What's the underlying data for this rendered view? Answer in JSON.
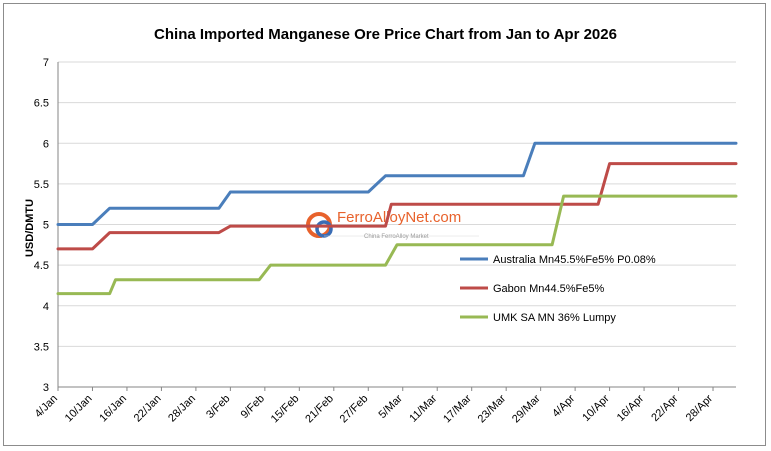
{
  "chart_data": {
    "type": "line",
    "title": "China Imported Manganese Ore Price Chart from Jan to Apr 2026",
    "ylabel": "USD/DMTU",
    "xlabel": "",
    "ylim": [
      3,
      7
    ],
    "yticks": [
      "3",
      "3.5",
      "4",
      "4.5",
      "5",
      "5.5",
      "6",
      "6.5",
      "7"
    ],
    "xlim": [
      "2026-01-04",
      "2026-05-02"
    ],
    "xticks": [
      "4/Jan",
      "10/Jan",
      "16/Jan",
      "22/Jan",
      "28/Jan",
      "3/Feb",
      "9/Feb",
      "15/Feb",
      "21/Feb",
      "27/Feb",
      "5/Mar",
      "11/Mar",
      "17/Mar",
      "23/Mar",
      "29/Mar",
      "4/Apr",
      "10/Apr",
      "16/Apr",
      "22/Apr",
      "28/Apr"
    ],
    "grid": "horizontal",
    "legend_position": "right",
    "series": [
      {
        "name": "Australia Mn45.5%Fe5% P0.08%",
        "color": "#4a7ebb",
        "points": [
          [
            "2026-01-04",
            5.0
          ],
          [
            "2026-01-10",
            5.0
          ],
          [
            "2026-01-13",
            5.2
          ],
          [
            "2026-02-01",
            5.2
          ],
          [
            "2026-02-03",
            5.4
          ],
          [
            "2026-02-27",
            5.4
          ],
          [
            "2026-03-02",
            5.6
          ],
          [
            "2026-03-26",
            5.6
          ],
          [
            "2026-03-28",
            6.0
          ],
          [
            "2026-05-02",
            6.0
          ]
        ]
      },
      {
        "name": "Gabon Mn44.5%Fe5%",
        "color": "#be4b48",
        "points": [
          [
            "2026-01-04",
            4.7
          ],
          [
            "2026-01-10",
            4.7
          ],
          [
            "2026-01-13",
            4.9
          ],
          [
            "2026-02-01",
            4.9
          ],
          [
            "2026-02-03",
            4.98
          ],
          [
            "2026-03-02",
            4.98
          ],
          [
            "2026-03-03",
            5.25
          ],
          [
            "2026-04-08",
            5.25
          ],
          [
            "2026-04-10",
            5.75
          ],
          [
            "2026-05-02",
            5.75
          ]
        ]
      },
      {
        "name": "UMK SA MN 36% Lumpy",
        "color": "#98b954",
        "points": [
          [
            "2026-01-04",
            4.15
          ],
          [
            "2026-01-13",
            4.15
          ],
          [
            "2026-01-14",
            4.32
          ],
          [
            "2026-02-08",
            4.32
          ],
          [
            "2026-02-10",
            4.5
          ],
          [
            "2026-03-02",
            4.5
          ],
          [
            "2026-03-04",
            4.75
          ],
          [
            "2026-03-31",
            4.75
          ],
          [
            "2026-04-02",
            5.35
          ],
          [
            "2026-05-02",
            5.35
          ]
        ]
      }
    ]
  },
  "watermark": {
    "brand": "FerroAlloyNet.com",
    "subtitle": "China FerroAlloy Market",
    "logo_color": "#e8622c"
  }
}
